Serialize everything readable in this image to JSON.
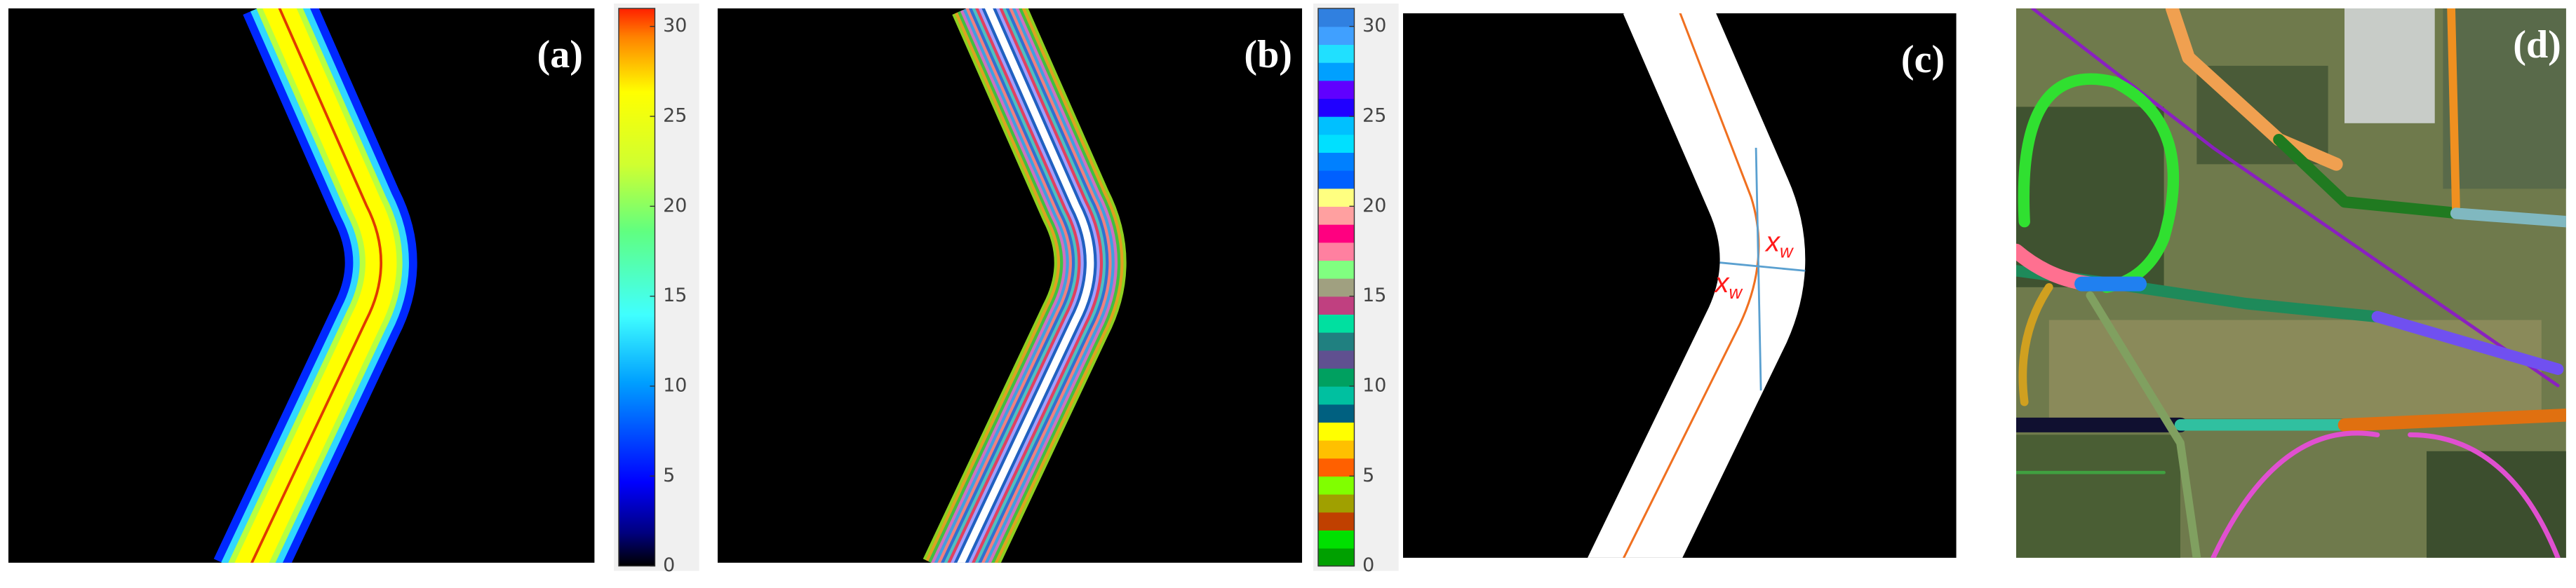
{
  "panels": [
    {
      "label": "(a)",
      "colorbar": {
        "range": [
          0,
          31
        ],
        "ticks": [
          0,
          5,
          10,
          15,
          20,
          25,
          30
        ]
      }
    },
    {
      "label": "(b)",
      "colorbar": {
        "range": [
          0,
          31
        ],
        "ticks": [
          0,
          5,
          10,
          15,
          20,
          25,
          30
        ]
      }
    },
    {
      "label": "(c)",
      "annotations": [
        {
          "base": "x",
          "sub": "w"
        },
        {
          "base": "x",
          "sub": "w"
        }
      ]
    },
    {
      "label": "(d)"
    }
  ]
}
